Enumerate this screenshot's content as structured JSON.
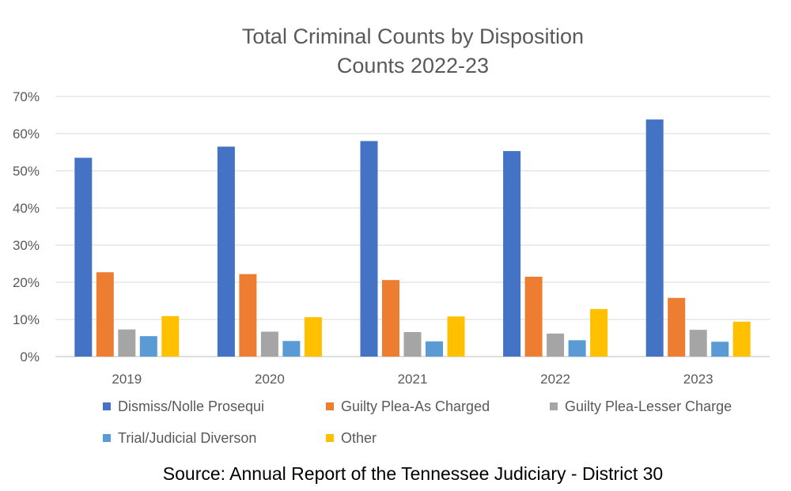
{
  "chart_data": {
    "type": "bar",
    "title_lines": [
      "Total Criminal Counts by Disposition",
      "Counts 2022-23"
    ],
    "categories": [
      "2019",
      "2020",
      "2021",
      "2022",
      "2023"
    ],
    "series": [
      {
        "name": "Dismiss/Nolle Prosequi",
        "color": "#4472C4",
        "values": [
          53.5,
          56.5,
          58.0,
          55.3,
          63.8
        ]
      },
      {
        "name": "Guilty Plea-As Charged",
        "color": "#ED7D31",
        "values": [
          22.7,
          22.2,
          20.6,
          21.5,
          15.8
        ]
      },
      {
        "name": "Guilty Plea-Lesser Charge",
        "color": "#A5A5A5",
        "values": [
          7.3,
          6.7,
          6.6,
          6.2,
          7.2
        ]
      },
      {
        "name": "Trial/Judicial Diverson",
        "color": "#5B9BD5",
        "values": [
          5.5,
          4.2,
          4.1,
          4.4,
          4.0
        ]
      },
      {
        "name": "Other",
        "color": "#FFC000",
        "values": [
          10.9,
          10.6,
          10.8,
          12.8,
          9.4
        ]
      }
    ],
    "yticks": [
      "0%",
      "10%",
      "20%",
      "30%",
      "40%",
      "50%",
      "60%",
      "70%"
    ],
    "ylim": [
      0,
      70
    ],
    "xlabel": "",
    "ylabel": "",
    "grid": true,
    "legend_position": "bottom"
  },
  "source": "Source: Annual Report of the Tennessee Judiciary - District 30"
}
